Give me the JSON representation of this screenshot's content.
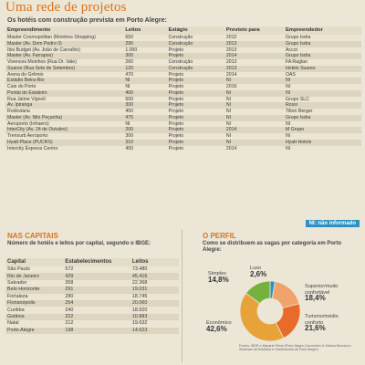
{
  "headline": "Uma rede de projetos",
  "hotels_section": {
    "subtitle": "Os hotéis com construção prevista em Porto Alegre:",
    "headers": [
      "Empreendimento",
      "Leitos",
      "Estágio",
      "Previsto para",
      "Empreendedor"
    ],
    "rows": [
      [
        "Master Cosmopolitan (Moinhos Shopping)",
        "650",
        "Construção",
        "2012",
        "Grupo Isdra"
      ],
      [
        "Master (Av. Dom Pedro II)",
        "290",
        "Construção",
        "2013",
        "Grupo Isdra"
      ],
      [
        "Ibis Budget (Av. João de Carvalho)",
        "1.000",
        "Projeto",
        "2013",
        "Accor"
      ],
      [
        "Master (Av. Farrapos)",
        "300",
        "Projeto",
        "2014",
        "Grupo Isdra"
      ],
      [
        "Vivences Moinhos (Rua Dr. Vale)",
        "260",
        "Construção",
        "2013",
        "FA Raglan"
      ],
      [
        "Suarez (Rua Sete de Setembro)",
        "120",
        "Construção",
        "2013",
        "Hotéis Suarez"
      ],
      [
        "Arena do Grêmio",
        "470",
        "Projeto",
        "2014",
        "OAS"
      ],
      [
        "Estádio Beira-Rio",
        "NI",
        "Projeto",
        "NI",
        "NI"
      ],
      [
        "Cais do Porto",
        "NI",
        "Projeto",
        "2016",
        "NI"
      ],
      [
        "Pontal do Estaleiro",
        "400",
        "Projeto",
        "NI",
        "NI"
      ],
      [
        "Rua Jaime Vignoli",
        "600",
        "Projeto",
        "NI",
        "Grupo SLC"
      ],
      [
        "Av. Ipiranga",
        "300",
        "Projeto",
        "NI",
        "Rossi"
      ],
      [
        "Rodoviária",
        "450",
        "Projeto",
        "NI",
        "Tilton Berger"
      ],
      [
        "Master (Av. Nilo Peçanha)",
        "475",
        "Projeto",
        "NI",
        "Grupo Isdra"
      ],
      [
        "Aeroporto (Infraero)",
        "NI",
        "Projeto",
        "NI",
        "NI"
      ],
      [
        "InterCity (Av. 24 de Outubro)",
        "200",
        "Projeto",
        "2014",
        "M Grupo"
      ],
      [
        "Trensurb Aeroporto",
        "300",
        "Projeto",
        "NI",
        "NI"
      ],
      [
        "Hyatt Place (PUCRS)",
        "310",
        "Projeto",
        "NI",
        "Hyatt Hotels"
      ],
      [
        "Intercity Express Centro",
        "400",
        "Projeto",
        "2014",
        "NI"
      ]
    ],
    "legend": "NI: não informado"
  },
  "capitals_section": {
    "title": "NAS CAPITAIS",
    "subtitle": "Número de hotéis e leitos por capital, segundo o IBGE:",
    "headers": [
      "Capital",
      "Estabelecimentos",
      "Leitos"
    ],
    "rows": [
      [
        "São Paulo",
        "572",
        "73.480"
      ],
      [
        "Rio de Janeiro",
        "429",
        "45.416"
      ],
      [
        "Salvador",
        "358",
        "22.368"
      ],
      [
        "Belo Horizonte",
        "291",
        "19.031"
      ],
      [
        "Fortaleza",
        "280",
        "18.745"
      ],
      [
        "Florianópolis",
        "254",
        "20.060"
      ],
      [
        "Curitiba",
        "240",
        "18.920"
      ],
      [
        "Goiânia",
        "222",
        "10.883"
      ],
      [
        "Natal",
        "212",
        "19.632"
      ],
      [
        "Porto Alegre",
        "198",
        "14.623"
      ]
    ]
  },
  "perfil_section": {
    "title": "O PERFIL",
    "subtitle": "Como se distribuem as vagas por categoria em Porto Alegre:",
    "source": "Fontes: IBGE e Mauarte Peixe (Porto Alegre Convention & Visitors Bureau) e Sindicato da Hotelaria e Gastronomia de Porto Alegre)"
  },
  "chart_data": {
    "type": "pie",
    "title": "O PERFIL",
    "categories": [
      "Luxo",
      "Superior/muito confortável",
      "Turismo/médio conforto",
      "Econômico",
      "Simples"
    ],
    "values": [
      2.6,
      18.4,
      21.6,
      42.6,
      14.8
    ],
    "labels": [
      "2,6%",
      "18,4%",
      "21,6%",
      "42,6%",
      "14,8%"
    ],
    "colors": [
      "#2f8fc4",
      "#f0a36a",
      "#e96b2a",
      "#e8a23a",
      "#74b23e"
    ]
  }
}
